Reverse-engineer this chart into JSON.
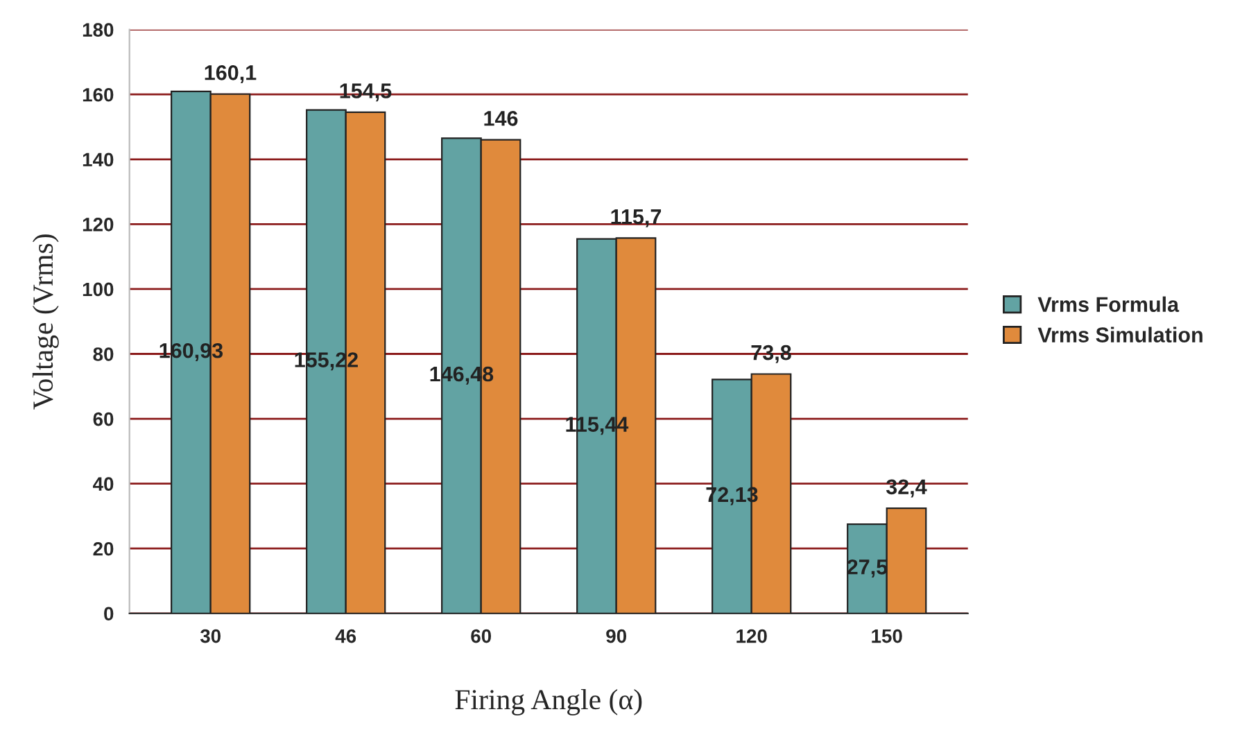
{
  "chart_data": {
    "type": "bar",
    "xlabel": "Firing Angle (α)",
    "ylabel": "Voltage (Vrms)",
    "categories": [
      "30",
      "46",
      "60",
      "90",
      "120",
      "150"
    ],
    "series": [
      {
        "name": "Vrms Formula",
        "color": "#62a3a3",
        "values": [
          160.93,
          155.22,
          146.48,
          115.44,
          72.13,
          27.5
        ],
        "value_labels": [
          "160,93",
          "155,22",
          "146,48",
          "115,44",
          "72,13",
          "27,5"
        ]
      },
      {
        "name": "Vrms Simulation",
        "color": "#e08a3c",
        "values": [
          160.1,
          154.5,
          146,
          115.7,
          73.8,
          32.4
        ],
        "value_labels": [
          "160,1",
          "154,5",
          "146",
          "115,7",
          "73,8",
          "32,4"
        ]
      }
    ],
    "ylim": [
      0,
      180
    ],
    "yticks": [
      0,
      20,
      40,
      60,
      80,
      100,
      120,
      140,
      160,
      180
    ],
    "grid": "y",
    "legend": "right"
  }
}
